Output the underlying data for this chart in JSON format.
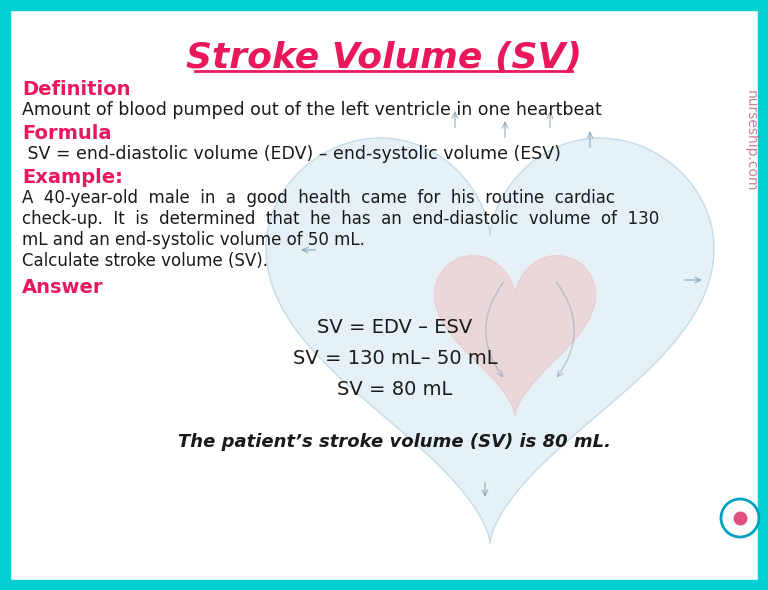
{
  "title": "Stroke Volume (SV)",
  "title_color": "#E8185A",
  "title_fontsize": 26,
  "background_color": "#FFFFFF",
  "border_color": "#00D0D0",
  "border_width": 10,
  "section_label_color": "#E8185A",
  "body_color": "#1a1a1a",
  "definition_label": "Definition",
  "definition_text": "Amount of blood pumped out of the left ventricle in one heartbeat",
  "formula_label": "Formula",
  "formula_text": " SV = end-diastolic volume (EDV) – end-systolic volume (ESV)",
  "example_label": "Example:",
  "example_text1": "A  40-year-old  male  in  a  good  health  came  for  his  routine  cardiac",
  "example_text2": "check-up.  It  is  determined  that  he  has  an  end-diastolic  volume  of  130",
  "example_text3": "mL and an end-systolic volume of 50 mL.",
  "example_text4": "Calculate stroke volume (SV).",
  "answer_label": "Answer",
  "answer_line1": "SV = EDV – ESV",
  "answer_line2": "SV = 130 mL– 50 mL",
  "answer_line3": "SV = 80 mL",
  "answer_final": "The patient’s stroke volume (SV) is 80 mL.",
  "watermark": "nurseship.com",
  "heart_blue": "#cde4f0",
  "heart_pink": "#f0b8b8",
  "heart_arrow": "#7090a8",
  "watermark_color": "#c05080",
  "icon_ring_color": "#00a0c0",
  "icon_dot_color": "#e05080"
}
